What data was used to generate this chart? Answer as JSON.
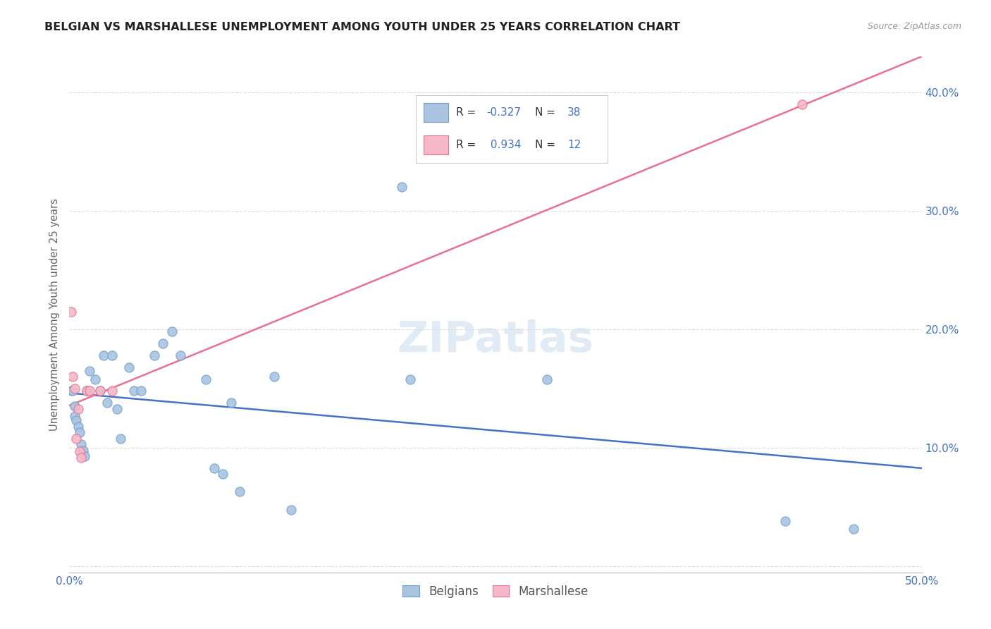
{
  "title": "BELGIAN VS MARSHALLESE UNEMPLOYMENT AMONG YOUTH UNDER 25 YEARS CORRELATION CHART",
  "source": "Source: ZipAtlas.com",
  "ylabel": "Unemployment Among Youth under 25 years",
  "xlim": [
    0.0,
    0.5
  ],
  "ylim": [
    -0.005,
    0.43
  ],
  "xticks": [
    0.0,
    0.1,
    0.2,
    0.3,
    0.4,
    0.5
  ],
  "yticks": [
    0.0,
    0.1,
    0.2,
    0.3,
    0.4
  ],
  "background_color": "#ffffff",
  "grid_color": "#dddddd",
  "belgians": {
    "color": "#aac4e0",
    "edge_color": "#6e9fcf",
    "line_color": "#4472c4",
    "R": -0.327,
    "N": 38,
    "scatter_x": [
      0.001,
      0.002,
      0.003,
      0.003,
      0.004,
      0.005,
      0.006,
      0.007,
      0.008,
      0.009,
      0.01,
      0.012,
      0.015,
      0.018,
      0.02,
      0.022,
      0.025,
      0.028,
      0.03,
      0.035,
      0.038,
      0.042,
      0.05,
      0.055,
      0.06,
      0.065,
      0.08,
      0.085,
      0.09,
      0.095,
      0.1,
      0.12,
      0.13,
      0.195,
      0.2,
      0.28,
      0.42,
      0.46
    ],
    "scatter_y": [
      0.148,
      0.148,
      0.135,
      0.127,
      0.123,
      0.118,
      0.113,
      0.103,
      0.098,
      0.093,
      0.148,
      0.165,
      0.158,
      0.148,
      0.178,
      0.138,
      0.178,
      0.133,
      0.108,
      0.168,
      0.148,
      0.148,
      0.178,
      0.188,
      0.198,
      0.178,
      0.158,
      0.083,
      0.078,
      0.138,
      0.063,
      0.16,
      0.048,
      0.32,
      0.158,
      0.158,
      0.038,
      0.032
    ]
  },
  "marshallese": {
    "color": "#f4b8c8",
    "edge_color": "#e87090",
    "line_color": "#e87090",
    "R": 0.934,
    "N": 12,
    "scatter_x": [
      0.001,
      0.002,
      0.003,
      0.004,
      0.005,
      0.006,
      0.007,
      0.01,
      0.012,
      0.018,
      0.025,
      0.43
    ],
    "scatter_y": [
      0.215,
      0.16,
      0.15,
      0.108,
      0.133,
      0.097,
      0.092,
      0.148,
      0.148,
      0.148,
      0.148,
      0.39
    ]
  },
  "legend_R_color": "#4472c4",
  "legend": {
    "belgian_label": "Belgians",
    "marshallese_label": "Marshallese"
  }
}
